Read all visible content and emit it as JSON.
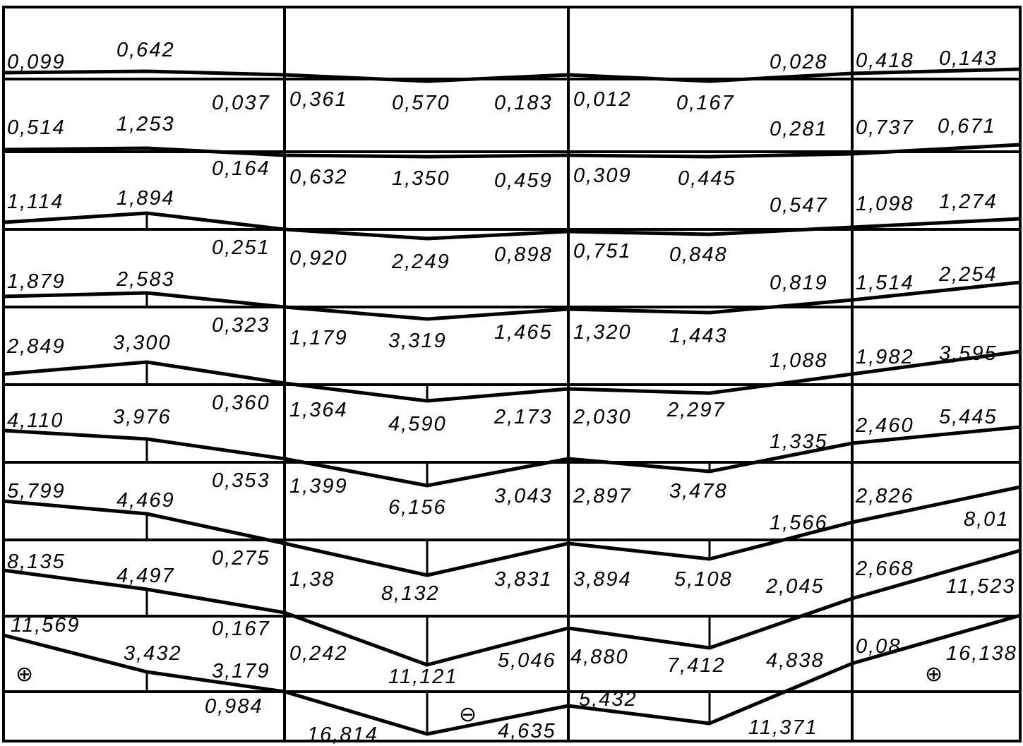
{
  "diagram": {
    "rows": [
      [
        "0,099",
        "0,642",
        "0,028",
        "0,418",
        "0,143"
      ],
      [
        "0,037",
        "0,514",
        "1,253",
        "0,361",
        "0,570",
        "0,183",
        "0,012",
        "0,167",
        "0,281",
        "0,737",
        "0,671"
      ],
      [
        "0,164",
        "1,114",
        "1,894",
        "0,632",
        "1,350",
        "0,459",
        "0,309",
        "0,445",
        "0,547",
        "1,098",
        "1,274"
      ],
      [
        "0,251",
        "1,879",
        "2,583",
        "0,920",
        "2,249",
        "0,898",
        "0,751",
        "0,848",
        "0,819",
        "1,514",
        "2,254"
      ],
      [
        "0,323",
        "2,849",
        "3,300",
        "1,179",
        "3,319",
        "1,465",
        "1,320",
        "1,443",
        "1,088",
        "1,982",
        "3,595"
      ],
      [
        "0,360",
        "4,110",
        "3,976",
        "1,364",
        "4,590",
        "2,173",
        "2,030",
        "2,297",
        "1,335",
        "2,460",
        "5,445"
      ],
      [
        "0,353",
        "5,799",
        "4,469",
        "1,399",
        "6,156",
        "3,043",
        "2,897",
        "3,478",
        "1,566",
        "2,826",
        "8,01"
      ],
      [
        "0,275",
        "8,135",
        "4,497",
        "1,38",
        "8,132",
        "3,831",
        "3,894",
        "5,108",
        "2,045",
        "2,668",
        "11,523"
      ],
      [
        "0,167",
        "11,569",
        "3,432",
        "3,179",
        "0,242",
        "11,121",
        "5,046",
        "4,880",
        "7,412",
        "4,838",
        "0,08",
        "16,138"
      ],
      [
        "0,984",
        "16,814",
        "4,635",
        "5,432",
        "11,371"
      ]
    ],
    "signs": [
      "⊕",
      "⊖",
      "⊕"
    ],
    "sign_names": [
      "plus-sign-icon",
      "minus-sign-icon",
      "plus-sign-icon"
    ]
  }
}
